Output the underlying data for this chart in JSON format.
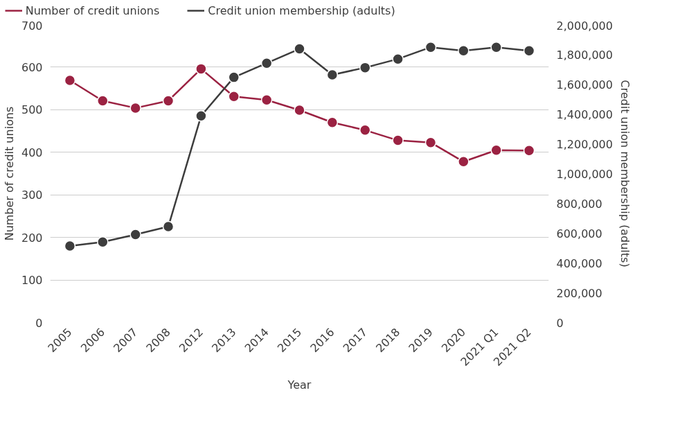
{
  "chart_data": {
    "type": "line",
    "xlabel": "Year",
    "ylabel": "Number of credit unions",
    "y2label": "Credit union membership (adults)",
    "categories": [
      "2005",
      "2006",
      "2007",
      "2008",
      "2012",
      "2013",
      "2014",
      "2015",
      "2016",
      "2017",
      "2018",
      "2019",
      "2020",
      "2021 Q1",
      "2021 Q2"
    ],
    "series": [
      {
        "name": "Number of credit unions",
        "color": "#9b2242",
        "values": [
          569,
          521,
          504,
          521,
          596,
          531,
          523,
          499,
          470,
          452,
          428,
          423,
          378,
          405,
          404
        ]
      },
      {
        "name": "Credit union membership (adults)",
        "color": "#3d3d3d",
        "axis": "y2",
        "values": [
          514000,
          541000,
          591000,
          644000,
          1387000,
          1646000,
          1741000,
          1837000,
          1663000,
          1711000,
          1769000,
          1848000,
          1824000,
          1848000,
          1824000
        ]
      }
    ],
    "ylim": [
      0,
      700
    ],
    "yticks": [
      0,
      100,
      200,
      300,
      400,
      500,
      600,
      700
    ],
    "y2lim": [
      0,
      2000000
    ],
    "y2ticks": [
      {
        "value": 0,
        "label": "0"
      },
      {
        "value": 200000,
        "label": "200,000"
      },
      {
        "value": 400000,
        "label": "400,000"
      },
      {
        "value": 600000,
        "label": "600,000"
      },
      {
        "value": 800000,
        "label": "800,000"
      },
      {
        "value": 1000000,
        "label": "1,000,000"
      },
      {
        "value": 1200000,
        "label": "1,200,000"
      },
      {
        "value": 1400000,
        "label": "1,400,000"
      },
      {
        "value": 1600000,
        "label": "1,600,000"
      },
      {
        "value": 1800000,
        "label": "1,800,000"
      },
      {
        "value": 2000000,
        "label": "2,000,000"
      }
    ],
    "grid": "y",
    "legend": "top left",
    "marker": "circle",
    "line_style": "solid"
  }
}
